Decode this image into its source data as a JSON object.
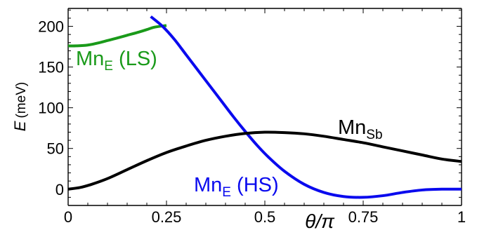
{
  "chart_data": {
    "type": "line",
    "title": "",
    "xlabel": "θ/π",
    "ylabel": {
      "symbol": "E",
      "unit": "(meV)"
    },
    "xlim": [
      0,
      1
    ],
    "ylim": [
      -20,
      222
    ],
    "xticks": [
      {
        "value": 0,
        "label": "0"
      },
      {
        "value": 0.25,
        "label": "0.25"
      },
      {
        "value": 0.5,
        "label": "0.5"
      },
      {
        "value": 0.75,
        "label": "0.75"
      },
      {
        "value": 1,
        "label": "1"
      }
    ],
    "yticks": [
      {
        "value": 0,
        "label": "0"
      },
      {
        "value": 50,
        "label": "50"
      },
      {
        "value": 100,
        "label": "100"
      },
      {
        "value": 150,
        "label": "150"
      },
      {
        "value": 200,
        "label": "200"
      }
    ],
    "grid": false,
    "series": [
      {
        "label_main": "Mn",
        "label_sub": "E",
        "label_suffix": " (LS)",
        "color": "#1a9a1a",
        "x": [
          0,
          0.02,
          0.05,
          0.08,
          0.1,
          0.12,
          0.15,
          0.18,
          0.2,
          0.22,
          0.25
        ],
        "y": [
          176,
          176,
          177,
          180,
          182.5,
          185,
          189,
          193,
          196,
          199,
          201
        ]
      },
      {
        "label_main": "Mn",
        "label_sub": "E",
        "label_suffix": " (HS)",
        "color": "#0a0aee",
        "x": [
          0.21,
          0.24,
          0.27,
          0.3,
          0.33,
          0.36,
          0.39,
          0.42,
          0.45,
          0.48,
          0.51,
          0.55,
          0.6,
          0.65,
          0.7,
          0.75,
          0.8,
          0.85,
          0.9,
          0.95,
          1.0
        ],
        "y": [
          212,
          200,
          184,
          165,
          146,
          127,
          108,
          89,
          71,
          54,
          39,
          22,
          6,
          -4,
          -9,
          -10,
          -8,
          -4,
          -1,
          0,
          0
        ]
      },
      {
        "label_main": "Mn",
        "label_sub": "Sb",
        "label_suffix": "",
        "color": "#000000",
        "x": [
          0,
          0.03,
          0.06,
          0.1,
          0.15,
          0.2,
          0.25,
          0.3,
          0.35,
          0.4,
          0.45,
          0.5,
          0.55,
          0.6,
          0.65,
          0.7,
          0.75,
          0.8,
          0.85,
          0.9,
          0.95,
          1.0
        ],
        "y": [
          0,
          2,
          6,
          13,
          24,
          35,
          45,
          53,
          60,
          65,
          68.5,
          70,
          69.5,
          68,
          65,
          61,
          57,
          52,
          47,
          42,
          37,
          34
        ]
      }
    ]
  }
}
